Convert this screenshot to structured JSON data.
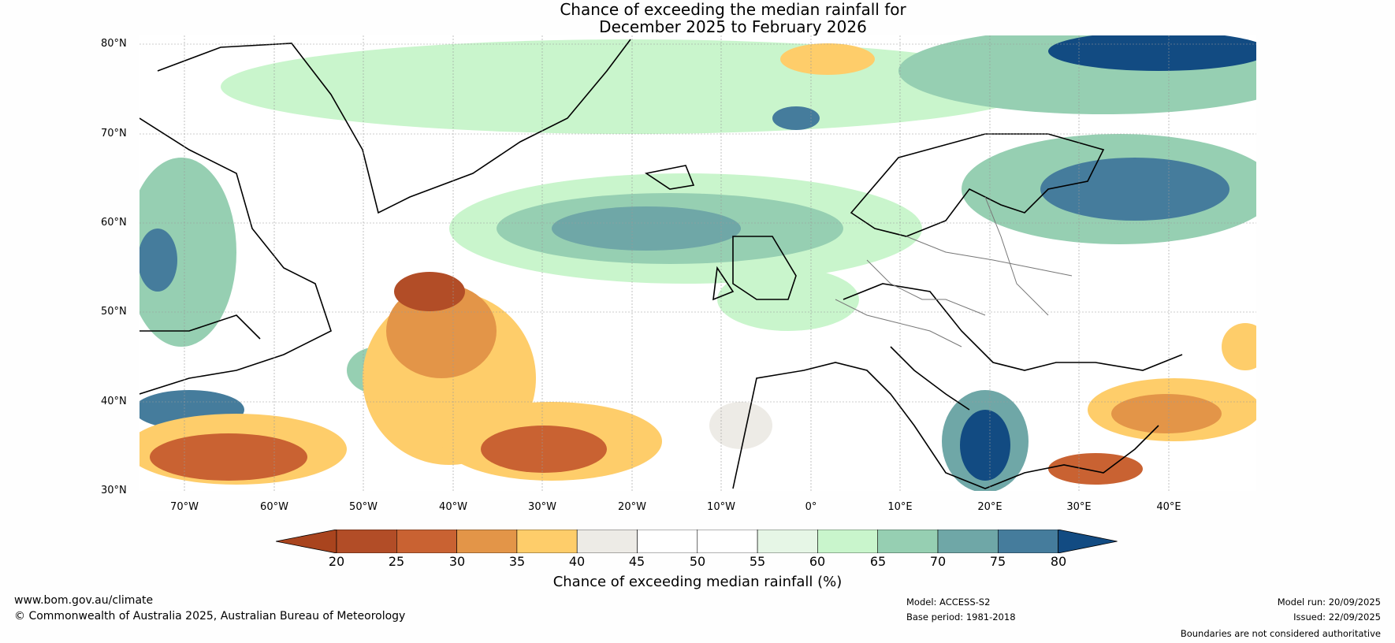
{
  "title_line1": "Chance of exceeding the median rainfall for",
  "title_line2": "December 2025 to February 2026",
  "lat_labels": [
    "80°N",
    "70°N",
    "60°N",
    "50°N",
    "40°N",
    "30°N"
  ],
  "lon_labels": [
    "70°W",
    "60°W",
    "50°W",
    "40°W",
    "30°W",
    "20°W",
    "10°W",
    "0°",
    "10°E",
    "20°E",
    "30°E",
    "40°E"
  ],
  "colorbar": {
    "label": "Chance of exceeding median rainfall (%)",
    "ticks": [
      "20",
      "25",
      "30",
      "35",
      "40",
      "45",
      "50",
      "55",
      "60",
      "65",
      "70",
      "75",
      "80"
    ],
    "colors": [
      "#a9441e",
      "#b24d27",
      "#c96232",
      "#e39548",
      "#fecd6a",
      "#edebe6",
      "#ffffff",
      "#ffffff",
      "#e6f6e6",
      "#c9f5cc",
      "#96cfb2",
      "#6fa7a7",
      "#457c9c",
      "#124b82"
    ]
  },
  "footer": {
    "site": "www.bom.gov.au/climate",
    "copyright": "© Commonwealth of Australia 2025, Australian Bureau of Meteorology",
    "model": "Model: ACCESS-S2",
    "base_period": "Base period: 1981-2018",
    "model_run": "Model run: 20/09/2025",
    "issued": "Issued: 22/09/2025",
    "disclaimer": "Boundaries are not considered authoritative"
  }
}
